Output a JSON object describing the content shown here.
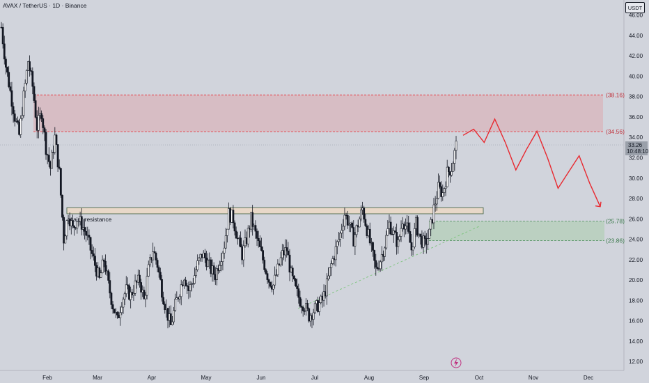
{
  "header": {
    "title": "AVAX / TetherUS · 1D · Binance",
    "currency": "USDT"
  },
  "colors": {
    "background": "#d1d4dc",
    "up": "#131722",
    "down": "#131722",
    "resistance_zone": "#d8b8c0",
    "support_zone": "#b8cfbe",
    "projection": "#e8282f",
    "trendline": "#7cc47c",
    "price_label_bg": "#9aa0aa"
  },
  "chart_data": {
    "type": "candlestick",
    "ylim": [
      11.4,
      47.2
    ],
    "y_ticks": [
      12,
      14,
      16,
      18,
      20,
      22,
      24,
      26,
      28,
      30,
      32,
      34,
      36,
      38,
      40,
      42,
      44,
      46
    ],
    "x_ticks": [
      "Feb",
      "Mar",
      "Apr",
      "May",
      "Jun",
      "Jul",
      "Aug",
      "Sep",
      "Oct",
      "Nov",
      "Dec"
    ],
    "ohlc_path": [
      44.8,
      41.0,
      38.5,
      36.0,
      34.2,
      38.0,
      41.5,
      39.0,
      35.0,
      36.5,
      33.0,
      31.0,
      34.0,
      30.5,
      24.0,
      26.5,
      25.0,
      26.0,
      25.5,
      24.5,
      23.0,
      21.5,
      20.0,
      22.0,
      19.5,
      17.5,
      16.0,
      18.0,
      19.0,
      18.5,
      19.5,
      20.0,
      18.0,
      21.0,
      23.0,
      21.5,
      19.0,
      17.0,
      15.5,
      17.5,
      19.0,
      20.5,
      19.0,
      20.0,
      21.5,
      22.5,
      22.0,
      21.0,
      20.5,
      22.0,
      23.5,
      26.5,
      26.0,
      24.0,
      22.5,
      24.0,
      26.0,
      24.5,
      23.0,
      21.5,
      20.0,
      19.5,
      21.0,
      22.5,
      23.0,
      20.5,
      19.0,
      18.0,
      17.5,
      16.5,
      17.0,
      17.5,
      18.0,
      19.5,
      21.5,
      23.0,
      24.5,
      26.5,
      25.5,
      24.0,
      25.5,
      27.0,
      25.0,
      23.0,
      21.0,
      22.0,
      23.5,
      25.5,
      24.5,
      23.5,
      26.0,
      25.0,
      23.0,
      25.5,
      24.0,
      23.5,
      24.5,
      27.0,
      29.0,
      28.5,
      30.5,
      31.0,
      33.2
    ],
    "current_price": "33.26",
    "countdown": "10:48:10",
    "resistance_zone": {
      "top": 38.16,
      "bottom": 34.56,
      "top_label": "(38.16)",
      "bottom_label": "(34.56)"
    },
    "support_zone": {
      "top": 25.78,
      "bottom": 23.86,
      "top_label": "(25.78)",
      "bottom_label": "(23.86)"
    },
    "major_resistance": {
      "top": 27.1,
      "bottom": 26.5,
      "label": "major resistance"
    },
    "trendline": {
      "from_price": 17.2,
      "to_price": 25.6
    },
    "projection": [
      34.2,
      34.8,
      33.5,
      35.8,
      33.5,
      30.8,
      32.8,
      34.6,
      32.0,
      29.0,
      30.6,
      32.2,
      29.5,
      27.2
    ]
  }
}
